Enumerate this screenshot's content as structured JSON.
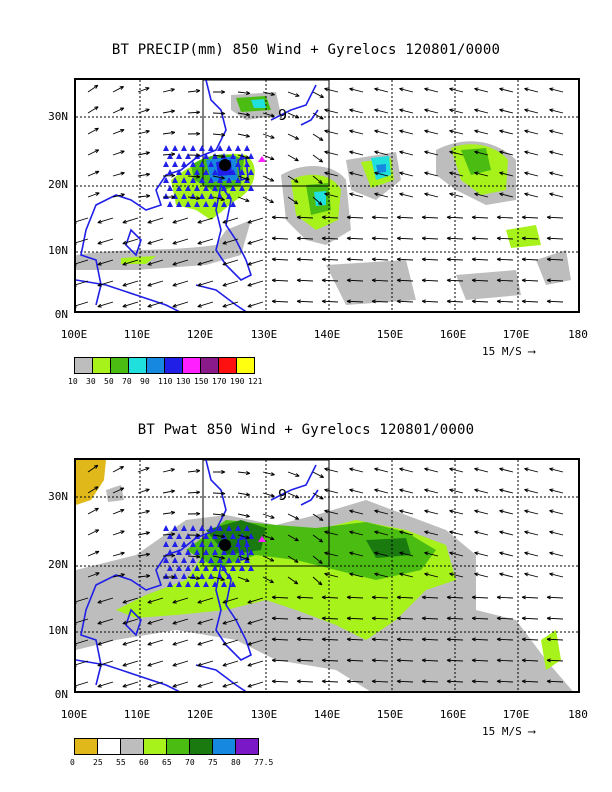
{
  "top": {
    "title": "BT PRECIP(mm) 850 Wind + Gyrelocs 120801/0000",
    "yticks": [
      "30N",
      "20N",
      "10N",
      "0N"
    ],
    "xticks": [
      "100E",
      "110E",
      "120E",
      "130E",
      "140E",
      "150E",
      "160E",
      "170E",
      "180"
    ],
    "ref_vector": "15 M/S",
    "colorbar": {
      "colors": [
        "#bdbdbd",
        "#a6f21a",
        "#4bbd12",
        "#1fe0dc",
        "#1688e0",
        "#1f1fe8",
        "#ff1fff",
        "#8a1a8a",
        "#ff1010",
        "#ffff10"
      ],
      "labels": [
        "10",
        "30",
        "50",
        "70",
        "90",
        "110",
        "130",
        "150",
        "170",
        "190",
        "121"
      ]
    },
    "gyre_symbol": "9"
  },
  "bottom": {
    "title": "BT Pwat 850 Wind + Gyrelocs 120801/0000",
    "yticks": [
      "30N",
      "20N",
      "10N",
      "0N"
    ],
    "xticks": [
      "100E",
      "110E",
      "120E",
      "130E",
      "140E",
      "150E",
      "160E",
      "170E",
      "180"
    ],
    "ref_vector": "15 M/S",
    "colorbar": {
      "colors": [
        "#e0b81a",
        "#ffffff",
        "#bdbdbd",
        "#a6f21a",
        "#4bbd12",
        "#1a7a10",
        "#1688e0",
        "#7a18c8"
      ],
      "labels": [
        "0",
        "25",
        "55",
        "60",
        "65",
        "70",
        "75",
        "80",
        "77.5"
      ]
    },
    "gyre_symbol": "9"
  }
}
